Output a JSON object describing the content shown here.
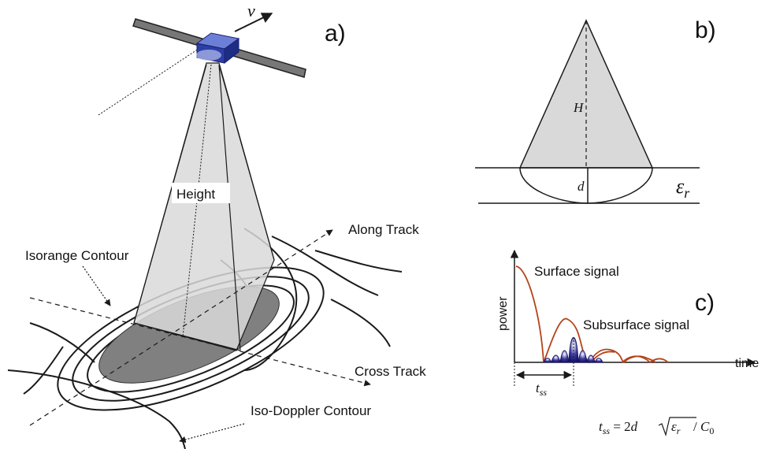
{
  "panel_a": {
    "panel_label": "a)",
    "velocity_label": "v",
    "height_label": "Height",
    "along_track_label": "Along Track",
    "cross_track_label": "Cross Track",
    "isorange_label": "Isorange Contour",
    "isodoppler_label": "Iso-Doppler Contour"
  },
  "panel_b": {
    "panel_label": "b)",
    "height_symbol": "H",
    "depth_symbol": "d",
    "permittivity_symbol": "ε",
    "permittivity_subscript": "r"
  },
  "panel_c": {
    "panel_label": "c)",
    "y_axis_label": "power",
    "x_axis_label": "time",
    "surface_signal_label": "Surface signal",
    "subsurface_signal_label": "Subsurface signal",
    "delay_symbol": "t",
    "delay_subscript": "ss",
    "formula": {
      "lhs_symbol": "t",
      "lhs_subscript": "ss",
      "equals": " = 2",
      "d": "d",
      "eps": "ε",
      "eps_subscript": "r",
      "slash": " / ",
      "c": "C",
      "c_subscript": "0"
    }
  },
  "colors": {
    "satellite_body": "#2b3fa6",
    "beam_fill": "#d9d9d9",
    "footprint_fill": "#808080",
    "surface_signal": "#b5431a",
    "subsurface_signal": "#26207a",
    "line": "#1a1a1a"
  }
}
